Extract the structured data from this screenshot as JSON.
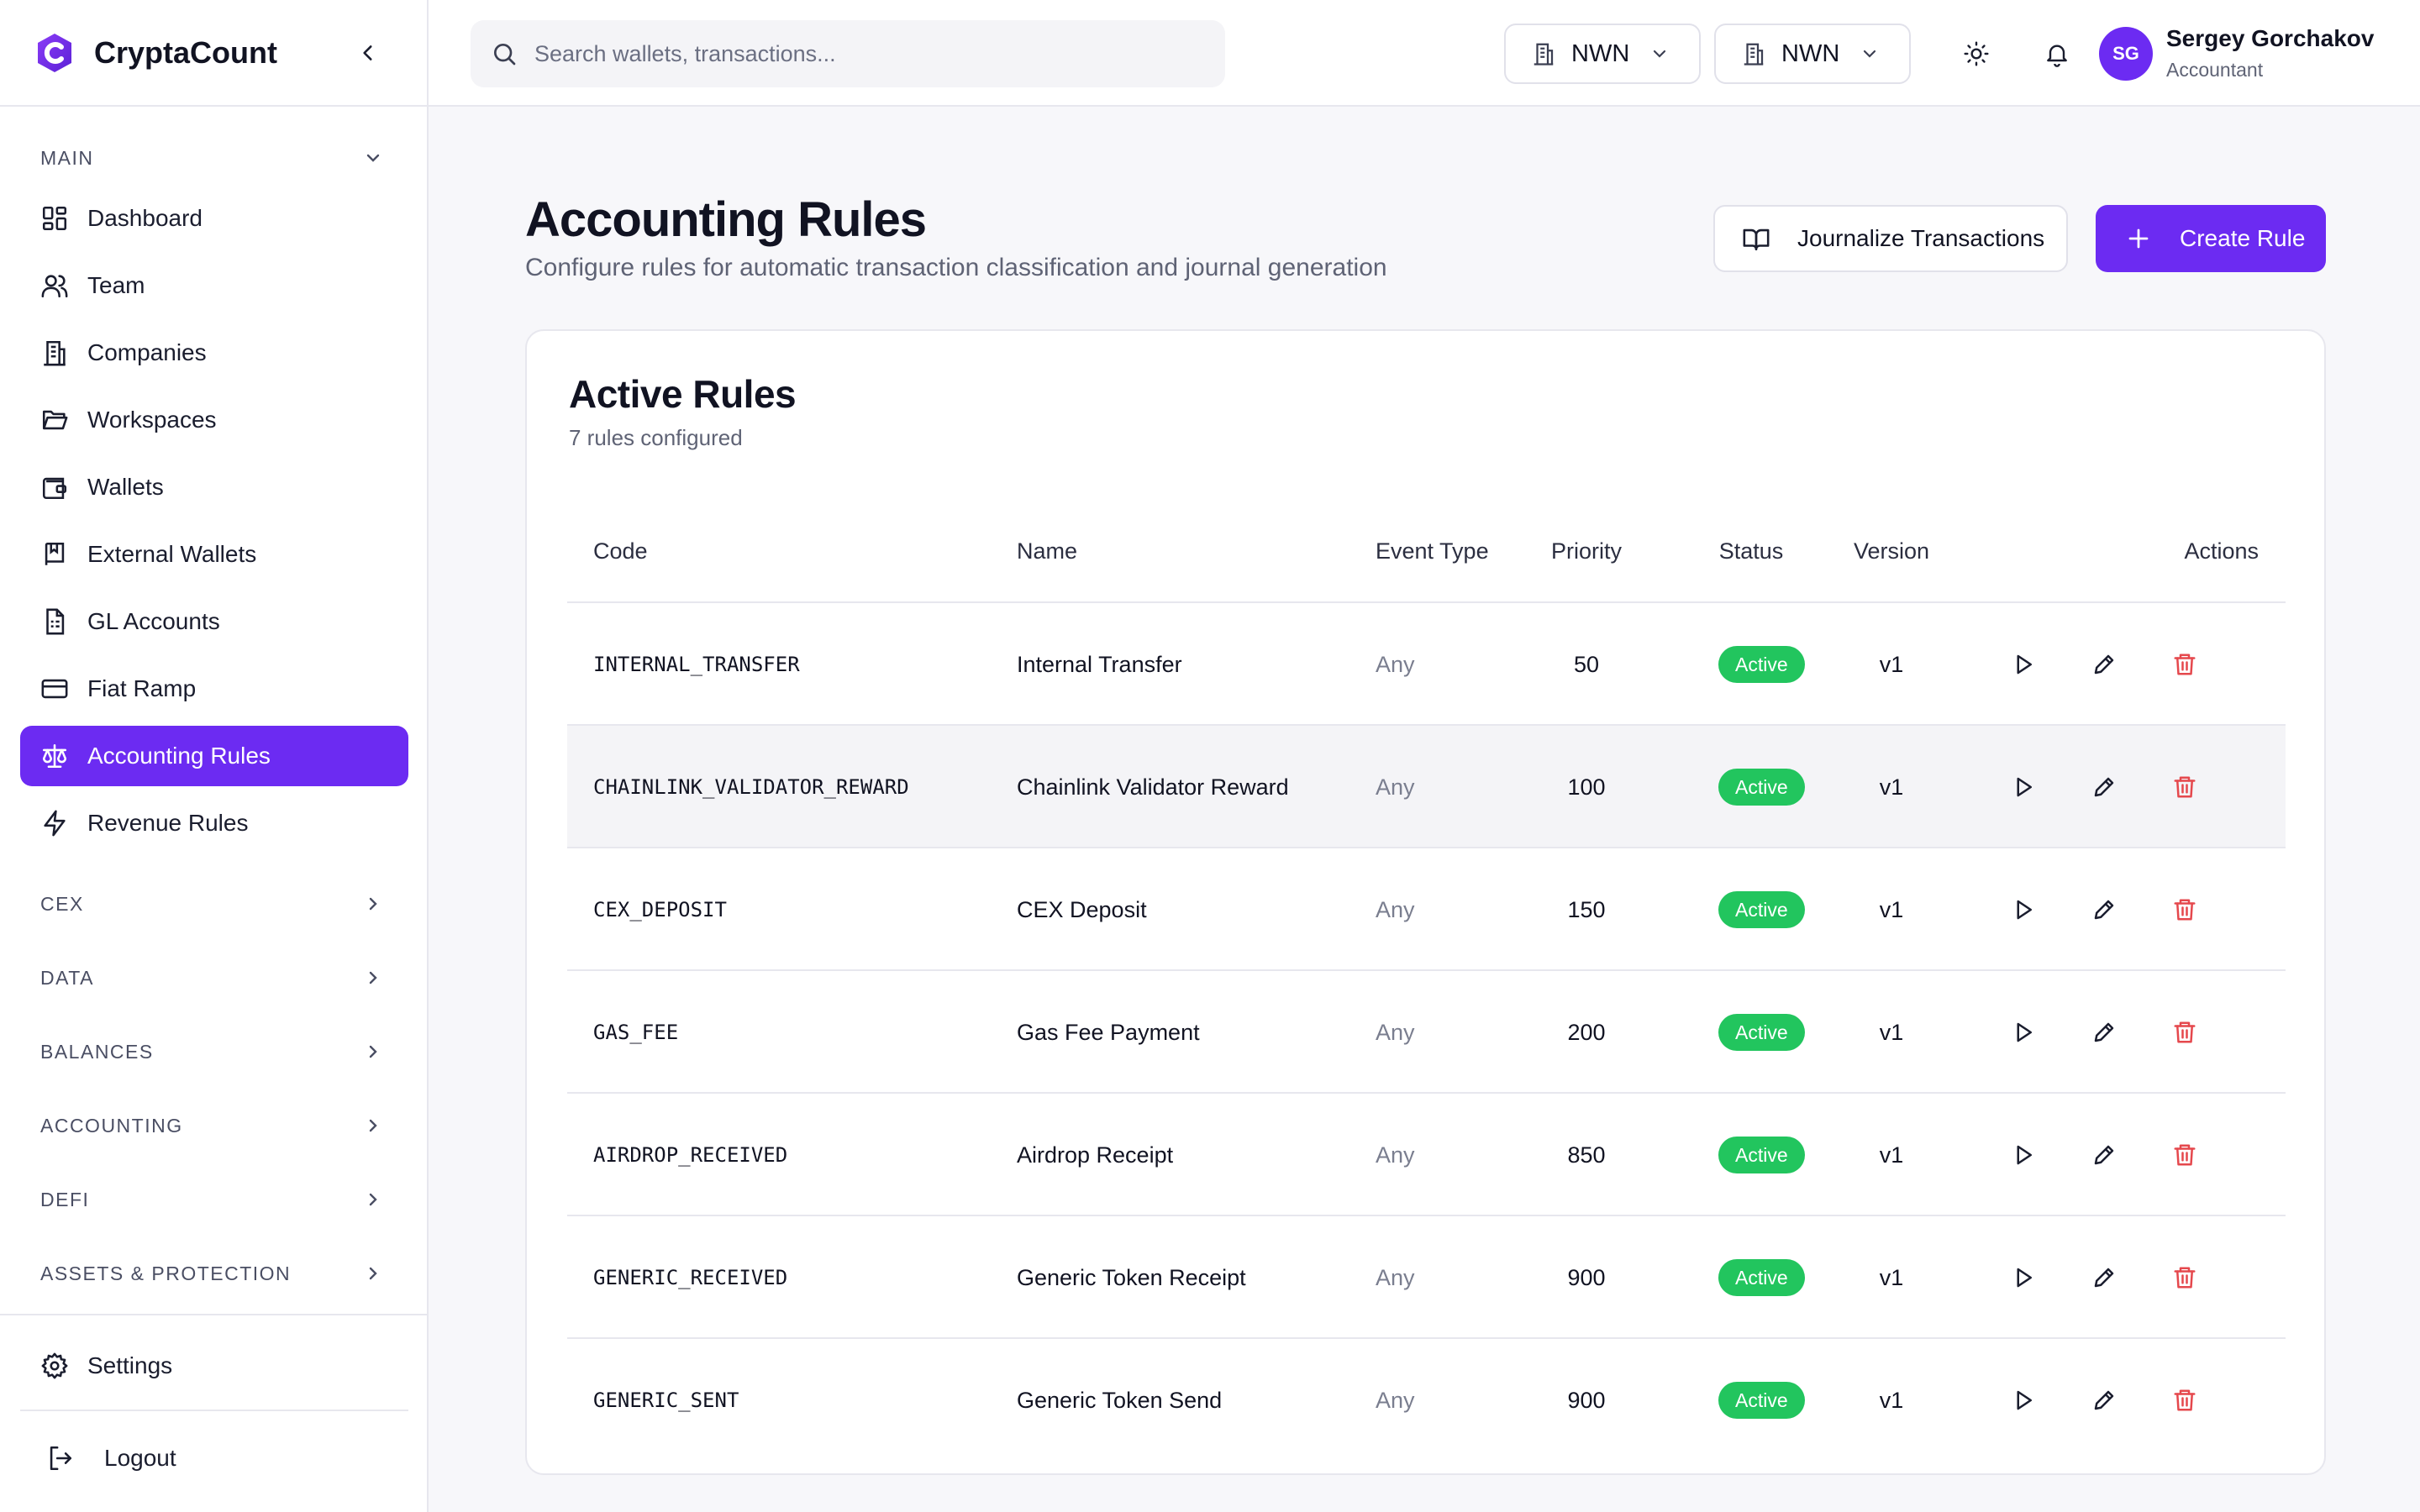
{
  "app": {
    "name": "CryptaCount"
  },
  "sidebar": {
    "main_section": "MAIN",
    "items": [
      {
        "label": "Dashboard",
        "icon": "dashboard-icon"
      },
      {
        "label": "Team",
        "icon": "users-icon"
      },
      {
        "label": "Companies",
        "icon": "building-icon"
      },
      {
        "label": "Workspaces",
        "icon": "folder-icon"
      },
      {
        "label": "Wallets",
        "icon": "wallet-icon"
      },
      {
        "label": "External Wallets",
        "icon": "bookmark-book-icon"
      },
      {
        "label": "GL Accounts",
        "icon": "ledger-icon"
      },
      {
        "label": "Fiat Ramp",
        "icon": "credit-card-icon"
      },
      {
        "label": "Accounting Rules",
        "icon": "scale-icon",
        "active": true
      },
      {
        "label": "Revenue Rules",
        "icon": "lightning-icon"
      }
    ],
    "sections": [
      "CEX",
      "DATA",
      "BALANCES",
      "ACCOUNTING",
      "DEFI",
      "ASSETS & PROTECTION"
    ],
    "settings_label": "Settings",
    "logout_label": "Logout"
  },
  "header": {
    "search_placeholder": "Search wallets, transactions...",
    "org_select_1": "NWN",
    "org_select_2": "NWN",
    "user": {
      "initials": "SG",
      "name": "Sergey Gorchakov",
      "role": "Accountant"
    }
  },
  "page": {
    "title": "Accounting Rules",
    "subtitle": "Configure rules for automatic transaction classification and journal generation",
    "journalize_label": "Journalize Transactions",
    "create_label": "Create Rule"
  },
  "card": {
    "title": "Active Rules",
    "subtitle": "7 rules configured",
    "columns": {
      "code": "Code",
      "name": "Name",
      "event_type": "Event Type",
      "priority": "Priority",
      "status": "Status",
      "version": "Version",
      "actions": "Actions"
    },
    "rows": [
      {
        "code": "INTERNAL_TRANSFER",
        "name": "Internal Transfer",
        "event_type": "Any",
        "priority": "50",
        "status": "Active",
        "version": "v1"
      },
      {
        "code": "CHAINLINK_VALIDATOR_REWARD",
        "name": "Chainlink Validator Reward",
        "event_type": "Any",
        "priority": "100",
        "status": "Active",
        "version": "v1"
      },
      {
        "code": "CEX_DEPOSIT",
        "name": "CEX Deposit",
        "event_type": "Any",
        "priority": "150",
        "status": "Active",
        "version": "v1"
      },
      {
        "code": "GAS_FEE",
        "name": "Gas Fee Payment",
        "event_type": "Any",
        "priority": "200",
        "status": "Active",
        "version": "v1"
      },
      {
        "code": "AIRDROP_RECEIVED",
        "name": "Airdrop Receipt",
        "event_type": "Any",
        "priority": "850",
        "status": "Active",
        "version": "v1"
      },
      {
        "code": "GENERIC_RECEIVED",
        "name": "Generic Token Receipt",
        "event_type": "Any",
        "priority": "900",
        "status": "Active",
        "version": "v1"
      },
      {
        "code": "GENERIC_SENT",
        "name": "Generic Token Send",
        "event_type": "Any",
        "priority": "900",
        "status": "Active",
        "version": "v1"
      }
    ]
  },
  "colors": {
    "accent": "#6c2bf2",
    "success": "#22c55e",
    "danger": "#e5484d"
  }
}
